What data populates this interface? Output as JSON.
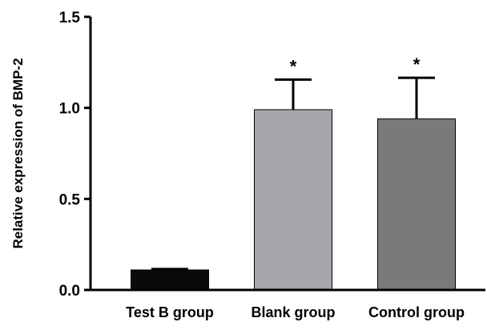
{
  "chart_data": {
    "type": "bar",
    "title": "",
    "xlabel": "",
    "ylabel": "Relative expression of BMP-2",
    "ylim": [
      0,
      1.5
    ],
    "y_ticks": [
      "0.0",
      "0.5",
      "1.0",
      "1.5"
    ],
    "categories": [
      "Test B group",
      "Blank group",
      "Control group"
    ],
    "values": [
      0.11,
      0.99,
      0.94
    ],
    "error_upper": [
      0.005,
      0.165,
      0.225
    ],
    "significance": [
      "",
      "*",
      "*"
    ],
    "colors": [
      "#0a0a0a",
      "#a7a7ab",
      "#7a7a7a"
    ],
    "grid": false,
    "legend": "none"
  }
}
